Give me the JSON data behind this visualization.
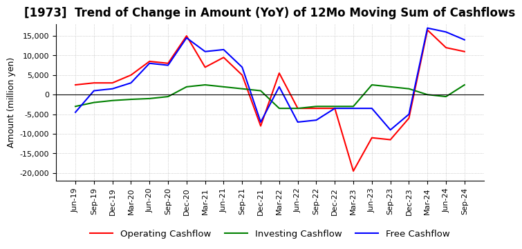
{
  "title": "[1973]  Trend of Change in Amount (YoY) of 12Mo Moving Sum of Cashflows",
  "ylabel": "Amount (million yen)",
  "ylim": [
    -22000,
    18000
  ],
  "yticks": [
    -20000,
    -15000,
    -10000,
    -5000,
    0,
    5000,
    10000,
    15000
  ],
  "x_labels": [
    "Jun-19",
    "Sep-19",
    "Dec-19",
    "Mar-20",
    "Jun-20",
    "Sep-20",
    "Dec-20",
    "Mar-21",
    "Jun-21",
    "Sep-21",
    "Dec-21",
    "Mar-22",
    "Jun-22",
    "Sep-22",
    "Dec-22",
    "Mar-23",
    "Jun-23",
    "Sep-23",
    "Dec-23",
    "Mar-24",
    "Jun-24",
    "Sep-24"
  ],
  "operating": [
    2500,
    3000,
    3000,
    5000,
    8500,
    8000,
    15000,
    7000,
    9500,
    5000,
    -8000,
    5500,
    -3500,
    -3500,
    -3500,
    -19500,
    -11000,
    -11500,
    -6000,
    16500,
    12000,
    11000
  ],
  "investing": [
    -3000,
    -2000,
    -1500,
    -1200,
    -1000,
    -500,
    2000,
    2500,
    2000,
    1500,
    1000,
    -3500,
    -3500,
    -3000,
    -3000,
    -3000,
    2500,
    2000,
    1500,
    0,
    -500,
    2500
  ],
  "free": [
    -4500,
    1000,
    1500,
    3000,
    8000,
    7500,
    14500,
    11000,
    11500,
    7000,
    -7000,
    2000,
    -7000,
    -6500,
    -3500,
    -3500,
    -3500,
    -9000,
    -5000,
    17000,
    16000,
    14000
  ],
  "operating_color": "#ff0000",
  "investing_color": "#008000",
  "free_color": "#0000ff",
  "grid_color": "#aaaaaa",
  "background_color": "#ffffff",
  "title_fontsize": 12,
  "label_fontsize": 9,
  "tick_fontsize": 8,
  "legend_fontsize": 9.5
}
